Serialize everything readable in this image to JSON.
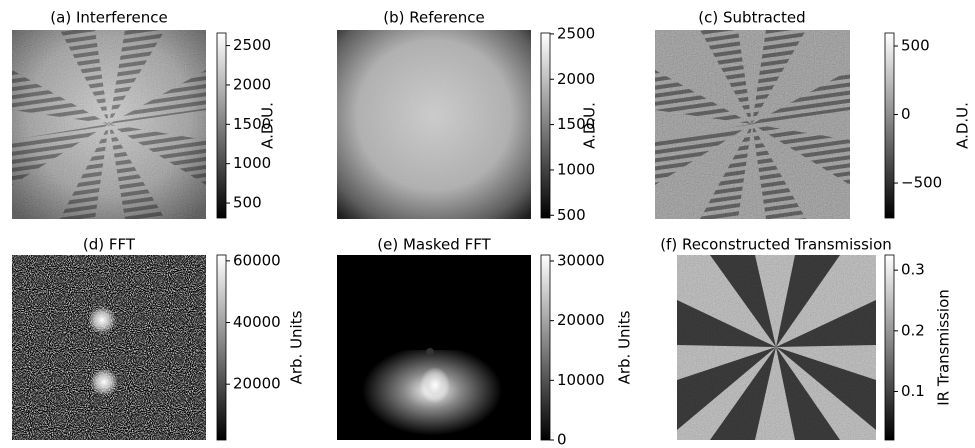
{
  "panels": [
    {
      "title": "(a) Interference",
      "colorbar_label": "A.D.U.",
      "clim": [
        310,
        2660
      ],
      "ticks": [
        500,
        1000,
        1500,
        2000,
        2500
      ]
    },
    {
      "title": "(b) Reference",
      "colorbar_label": "A.D.U.",
      "clim": [
        470,
        2510
      ],
      "ticks": [
        500,
        1000,
        1500,
        2000,
        2500
      ]
    },
    {
      "title": "(c) Subtracted",
      "colorbar_label": "A.D.U.",
      "clim": [
        -755,
        595
      ],
      "ticks": [
        {
          "value": -500,
          "label": "−500"
        },
        0,
        500
      ]
    },
    {
      "title": "(d) FFT",
      "colorbar_label": "Arb. Units",
      "clim": [
        1900,
        61900
      ],
      "ticks": [
        20000,
        40000,
        60000
      ]
    },
    {
      "title": "(e) Masked FFT",
      "colorbar_label": "Arb. Units",
      "clim": [
        0,
        31000
      ],
      "ticks": [
        0,
        10000,
        20000,
        30000
      ]
    },
    {
      "title": "(f) Reconstructed Transmission",
      "colorbar_label": "IR Transmission",
      "clim": [
        0.02,
        0.325
      ],
      "ticks": [
        0.1,
        0.2,
        0.3
      ]
    }
  ]
}
